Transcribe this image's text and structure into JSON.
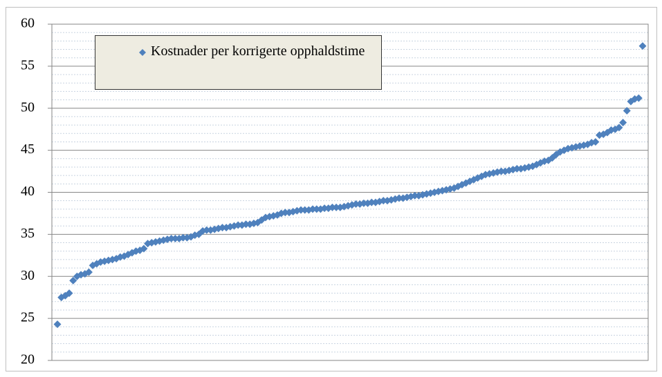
{
  "chart_data": {
    "type": "scatter",
    "series": [
      {
        "name": "Kostnader per korrigerte opphaldstime",
        "color": "#4f81bd",
        "values": [
          24.3,
          27.5,
          27.7,
          28.0,
          29.5,
          30.0,
          30.2,
          30.3,
          30.5,
          31.3,
          31.5,
          31.7,
          31.8,
          31.9,
          32.0,
          32.1,
          32.3,
          32.4,
          32.6,
          32.8,
          33.0,
          33.1,
          33.3,
          33.9,
          34.0,
          34.1,
          34.2,
          34.3,
          34.4,
          34.5,
          34.5,
          34.5,
          34.6,
          34.6,
          34.7,
          34.9,
          35.0,
          35.4,
          35.5,
          35.5,
          35.6,
          35.7,
          35.8,
          35.8,
          35.9,
          36.0,
          36.1,
          36.1,
          36.2,
          36.2,
          36.3,
          36.4,
          36.7,
          37.0,
          37.1,
          37.2,
          37.3,
          37.5,
          37.6,
          37.6,
          37.7,
          37.8,
          37.9,
          37.9,
          37.9,
          38.0,
          38.0,
          38.0,
          38.1,
          38.1,
          38.2,
          38.2,
          38.2,
          38.3,
          38.4,
          38.5,
          38.6,
          38.6,
          38.7,
          38.7,
          38.8,
          38.8,
          38.9,
          39.0,
          39.0,
          39.1,
          39.2,
          39.3,
          39.3,
          39.4,
          39.5,
          39.6,
          39.6,
          39.7,
          39.8,
          39.9,
          40.0,
          40.1,
          40.2,
          40.3,
          40.4,
          40.5,
          40.7,
          40.9,
          41.1,
          41.3,
          41.5,
          41.7,
          41.9,
          42.1,
          42.2,
          42.3,
          42.4,
          42.5,
          42.5,
          42.6,
          42.7,
          42.8,
          42.8,
          42.9,
          43.0,
          43.1,
          43.3,
          43.5,
          43.7,
          43.8,
          44.1,
          44.5,
          44.8,
          45.0,
          45.2,
          45.3,
          45.4,
          45.5,
          45.6,
          45.7,
          45.9,
          46.0,
          46.8,
          46.9,
          47.1,
          47.4,
          47.5,
          47.7,
          48.3,
          49.7,
          50.8,
          51.1,
          51.2,
          57.4
        ]
      }
    ],
    "ylim": [
      20,
      60
    ],
    "yticks": [
      20,
      25,
      30,
      35,
      40,
      45,
      50,
      55,
      60
    ],
    "minor_yticks": [
      21,
      22,
      23,
      24,
      26,
      27,
      28,
      29,
      31,
      32,
      33,
      34,
      36,
      37,
      38,
      39,
      41,
      42,
      43,
      44,
      46,
      47,
      48,
      49,
      51,
      52,
      53,
      54,
      56,
      57,
      58,
      59
    ],
    "grid": true,
    "minor_grid": true,
    "legend": "upper left"
  }
}
